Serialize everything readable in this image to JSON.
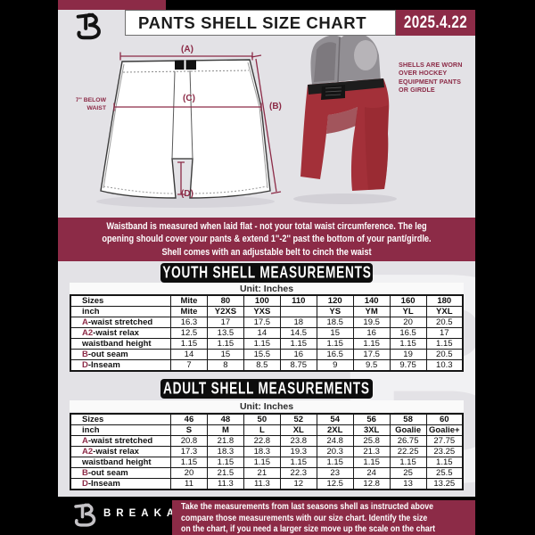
{
  "colors": {
    "maroon": "#8c2b47",
    "page_bg": "#e3e2e6",
    "table_line": "#161616",
    "shell_red": "#a33039",
    "ink": "#1c1c1c"
  },
  "header": {
    "title": "PANTS SHELL SIZE CHART",
    "date": "2025.4.22"
  },
  "diagram": {
    "labels": {
      "a": "(A)",
      "b": "(B)",
      "c": "(C)",
      "d": "(D)"
    },
    "waist_note_lines": [
      "7'' BELOW",
      "WAIST"
    ],
    "photo_caption_lines": [
      "SHELLS ARE WORN",
      "OVER HOCKEY",
      "EQUIPMENT PANTS",
      "OR GIRDLE"
    ]
  },
  "info_banner": {
    "lines": [
      "Waistband is measured when laid flat - not your total waist circumference. The leg",
      "opening should cover your pants & extend 1''-2'' past the bottom of your pant/girdle.",
      "Shell comes with an adjustable belt to cinch the waist"
    ]
  },
  "tables": {
    "youth": {
      "title": "YOUTH SHELL MEASUREMENTS",
      "unit_label": "Unit: Inches",
      "rows": [
        {
          "prefix": "",
          "label": "Sizes",
          "bold_values": true,
          "values": [
            "Mite",
            "80",
            "100",
            "110",
            "120",
            "140",
            "160",
            "180"
          ]
        },
        {
          "prefix": "",
          "label": "inch",
          "bold_values": true,
          "values": [
            "Mite",
            "Y2XS",
            "YXS",
            "",
            "YS",
            "YM",
            "YL",
            "YXL"
          ]
        },
        {
          "prefix": "A",
          "label": "-waist stretched",
          "values": [
            "16.3",
            "17",
            "17.5",
            "18",
            "18.5",
            "19.5",
            "20",
            "20.5"
          ]
        },
        {
          "prefix": "A2",
          "label": "-waist relax",
          "values": [
            "12.5",
            "13.5",
            "14",
            "14.5",
            "15",
            "16",
            "16.5",
            "17"
          ]
        },
        {
          "prefix": "",
          "label": "waistband height",
          "values": [
            "1.15",
            "1.15",
            "1.15",
            "1.15",
            "1.15",
            "1.15",
            "1.15",
            "1.15"
          ]
        },
        {
          "prefix": "B",
          "label": "-out seam",
          "values": [
            "14",
            "15",
            "15.5",
            "16",
            "16.5",
            "17.5",
            "19",
            "20.5"
          ]
        },
        {
          "prefix": "D",
          "label": "-Inseam",
          "values": [
            "7",
            "8",
            "8.5",
            "8.75",
            "9",
            "9.5",
            "9.75",
            "10.3"
          ]
        }
      ]
    },
    "adult": {
      "title": "ADULT SHELL MEASUREMENTS",
      "unit_label": "Unit: Inches",
      "rows": [
        {
          "prefix": "",
          "label": "Sizes",
          "bold_values": true,
          "values": [
            "46",
            "48",
            "50",
            "52",
            "54",
            "56",
            "58",
            "60"
          ]
        },
        {
          "prefix": "",
          "label": "inch",
          "bold_values": true,
          "values": [
            "S",
            "M",
            "L",
            "XL",
            "2XL",
            "3XL",
            "Goalie",
            "Goalie+"
          ]
        },
        {
          "prefix": "A",
          "label": "-waist stretched",
          "values": [
            "20.8",
            "21.8",
            "22.8",
            "23.8",
            "24.8",
            "25.8",
            "26.75",
            "27.75"
          ]
        },
        {
          "prefix": "A2",
          "label": "-waist relax",
          "values": [
            "17.3",
            "18.3",
            "18.3",
            "19.3",
            "20.3",
            "21.3",
            "22.25",
            "23.25"
          ]
        },
        {
          "prefix": "",
          "label": "waistband height",
          "values": [
            "1.15",
            "1.15",
            "1.15",
            "1.15",
            "1.15",
            "1.15",
            "1.15",
            "1.15"
          ]
        },
        {
          "prefix": "B",
          "label": "-out seam",
          "values": [
            "20",
            "21.5",
            "21",
            "22.3",
            "23",
            "24",
            "25",
            "25.5"
          ]
        },
        {
          "prefix": "D",
          "label": "-Inseam",
          "values": [
            "11",
            "11.3",
            "11.3",
            "12",
            "12.5",
            "12.8",
            "13",
            "13.25"
          ]
        }
      ]
    }
  },
  "footer": {
    "brand": "BREAKAWAY",
    "note_lines": [
      "Take the measurements from last seasons shell as instructed above",
      "compare those measurements  with our size chart. Identify the size",
      "on the chart, if you need a larger size move up the scale on the chart"
    ]
  },
  "watermark_letter": "B"
}
